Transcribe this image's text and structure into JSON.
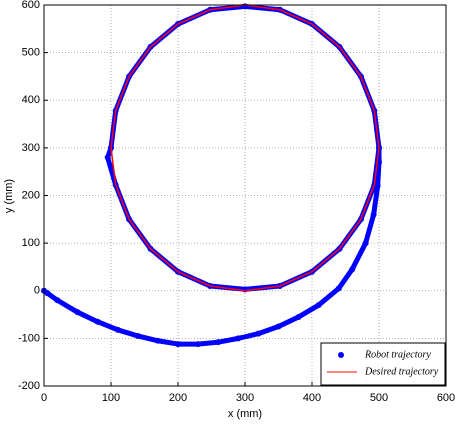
{
  "chart_data": {
    "type": "scatter",
    "xlabel": "x (mm)",
    "ylabel": "y (mm)",
    "xlim": [
      0,
      600
    ],
    "ylim": [
      -200,
      600
    ],
    "xticks": [
      0,
      100,
      200,
      300,
      400,
      500,
      600
    ],
    "yticks": [
      -200,
      -100,
      0,
      100,
      200,
      300,
      400,
      500,
      600
    ],
    "grid": true,
    "legend": "lower right",
    "series": [
      {
        "name": "Robot trajectory",
        "color": "#0000ff",
        "mode": "markers",
        "x": [
          0,
          5,
          20,
          50,
          80,
          110,
          140,
          170,
          200,
          230,
          260,
          290,
          320,
          350,
          380,
          410,
          440,
          460,
          480,
          492,
          498,
          500,
          500,
          493,
          473,
          441,
          400,
          352,
          300,
          248,
          200,
          159,
          127,
          107,
          100,
          95,
          107,
          127,
          159,
          200,
          248,
          300,
          352,
          400,
          441,
          473,
          493,
          500
        ],
        "y": [
          0,
          -5,
          -20,
          -45,
          -65,
          -82,
          -95,
          -105,
          -112,
          -112,
          -108,
          -100,
          -90,
          -75,
          -55,
          -30,
          5,
          45,
          100,
          160,
          220,
          270,
          300,
          378,
          450,
          512,
          560,
          590,
          597,
          590,
          560,
          512,
          450,
          378,
          300,
          280,
          222,
          150,
          88,
          40,
          10,
          3,
          10,
          40,
          88,
          150,
          222,
          300
        ]
      },
      {
        "name": "Desired trajectory",
        "color": "#ff0000",
        "mode": "line",
        "x": [
          500,
          493,
          473,
          441,
          400,
          352,
          300,
          248,
          200,
          159,
          127,
          107,
          100,
          107,
          127,
          159,
          200,
          248,
          300,
          352,
          400,
          441,
          473,
          493,
          500
        ],
        "y": [
          300,
          378,
          450,
          512,
          560,
          590,
          600,
          590,
          560,
          512,
          450,
          378,
          300,
          222,
          150,
          88,
          40,
          10,
          0,
          10,
          40,
          88,
          150,
          222,
          300
        ]
      }
    ]
  }
}
